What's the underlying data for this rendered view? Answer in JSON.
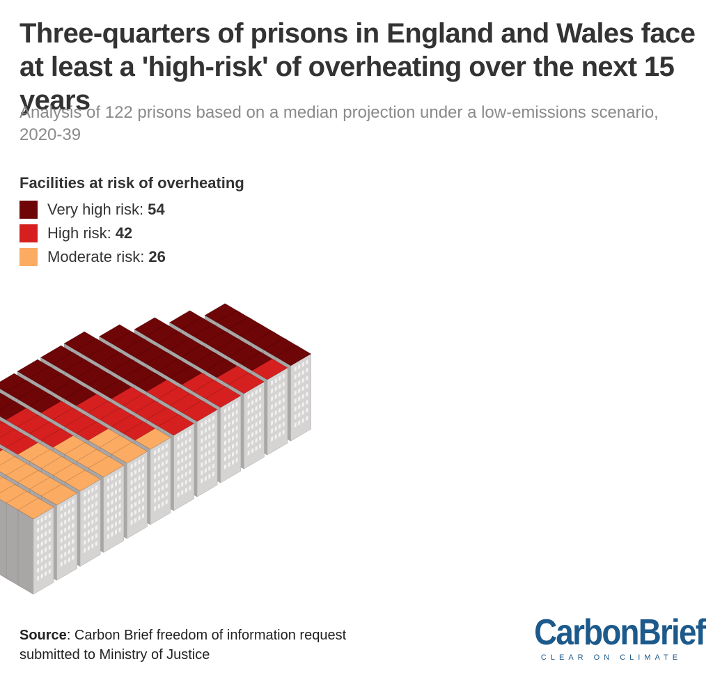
{
  "chart_data": {
    "type": "isotype",
    "title": "Three-quarters of prisons in England and Wales face at least a 'high-risk' of overheating over the next 15 years",
    "subtitle": "Analysis of 122 prisons based on a median projection under a low-emissions scenario, 2020-39",
    "total": 122,
    "unit": "prison",
    "legend_title": "Facilities at risk of overheating",
    "series": [
      {
        "name": "Very high risk",
        "label": "Very high risk:",
        "value": 54,
        "color": "#6e0506"
      },
      {
        "name": "High risk",
        "label": "High risk:",
        "value": 42,
        "color": "#d5201f"
      },
      {
        "name": "Moderate risk",
        "label": "Moderate risk:",
        "value": 26,
        "color": "#fcab63"
      }
    ]
  },
  "source": {
    "label": "Source",
    "text": ": Carbon Brief freedom of information request submitted to Ministry of Justice"
  },
  "logo": {
    "wordmark": "CarbonBrief",
    "tagline": "CLEAR ON CLIMATE"
  },
  "colors": {
    "building_side_light": "#d6d3d3",
    "building_side_dark": "#a9a6a6",
    "window": "#f2f1f1"
  }
}
